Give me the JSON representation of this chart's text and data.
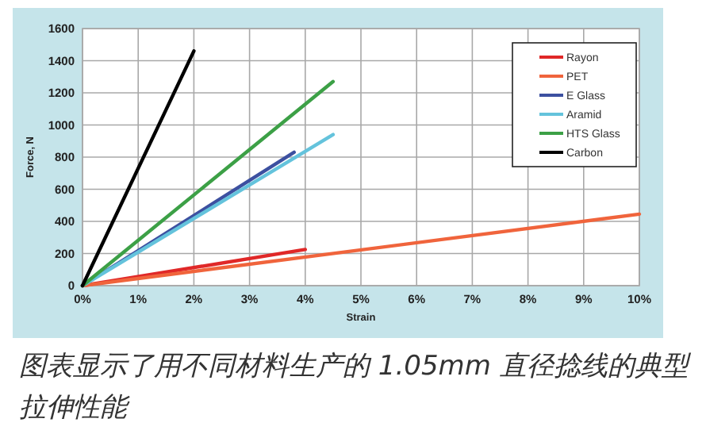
{
  "chart_data": {
    "type": "line",
    "xlabel": "Strain",
    "ylabel": "Force, N",
    "xlim": [
      0,
      10
    ],
    "ylim": [
      0,
      1600
    ],
    "xticks": [
      {
        "value": 0,
        "label": "0%"
      },
      {
        "value": 1,
        "label": "1%"
      },
      {
        "value": 2,
        "label": "2%"
      },
      {
        "value": 3,
        "label": "3%"
      },
      {
        "value": 4,
        "label": "4%"
      },
      {
        "value": 5,
        "label": "5%"
      },
      {
        "value": 6,
        "label": "6%"
      },
      {
        "value": 7,
        "label": "7%"
      },
      {
        "value": 8,
        "label": "8%"
      },
      {
        "value": 9,
        "label": "9%"
      },
      {
        "value": 10,
        "label": "10%"
      }
    ],
    "yticks": [
      0,
      200,
      400,
      600,
      800,
      1000,
      1200,
      1400,
      1600
    ],
    "grid": true,
    "legend": "top right",
    "series": [
      {
        "name": "Rayon",
        "color": "#e02828",
        "x": [
          0,
          4
        ],
        "values": [
          0,
          225
        ]
      },
      {
        "name": "PET",
        "color": "#f0643c",
        "x": [
          0,
          10
        ],
        "values": [
          0,
          445
        ]
      },
      {
        "name": "E Glass",
        "color": "#3c50a0",
        "x": [
          0,
          3.8
        ],
        "values": [
          0,
          830
        ]
      },
      {
        "name": "Aramid",
        "color": "#64c3dc",
        "x": [
          0,
          4.5
        ],
        "values": [
          0,
          940
        ]
      },
      {
        "name": "HTS Glass",
        "color": "#3ca046",
        "x": [
          0,
          4.5
        ],
        "values": [
          0,
          1270
        ]
      },
      {
        "name": "Carbon",
        "color": "#000000",
        "x": [
          0,
          2
        ],
        "values": [
          0,
          1460
        ]
      }
    ],
    "annotations": [
      "图表显示了用不同材料生产的 1.05mm 直径捻线的典型拉伸性能"
    ]
  }
}
